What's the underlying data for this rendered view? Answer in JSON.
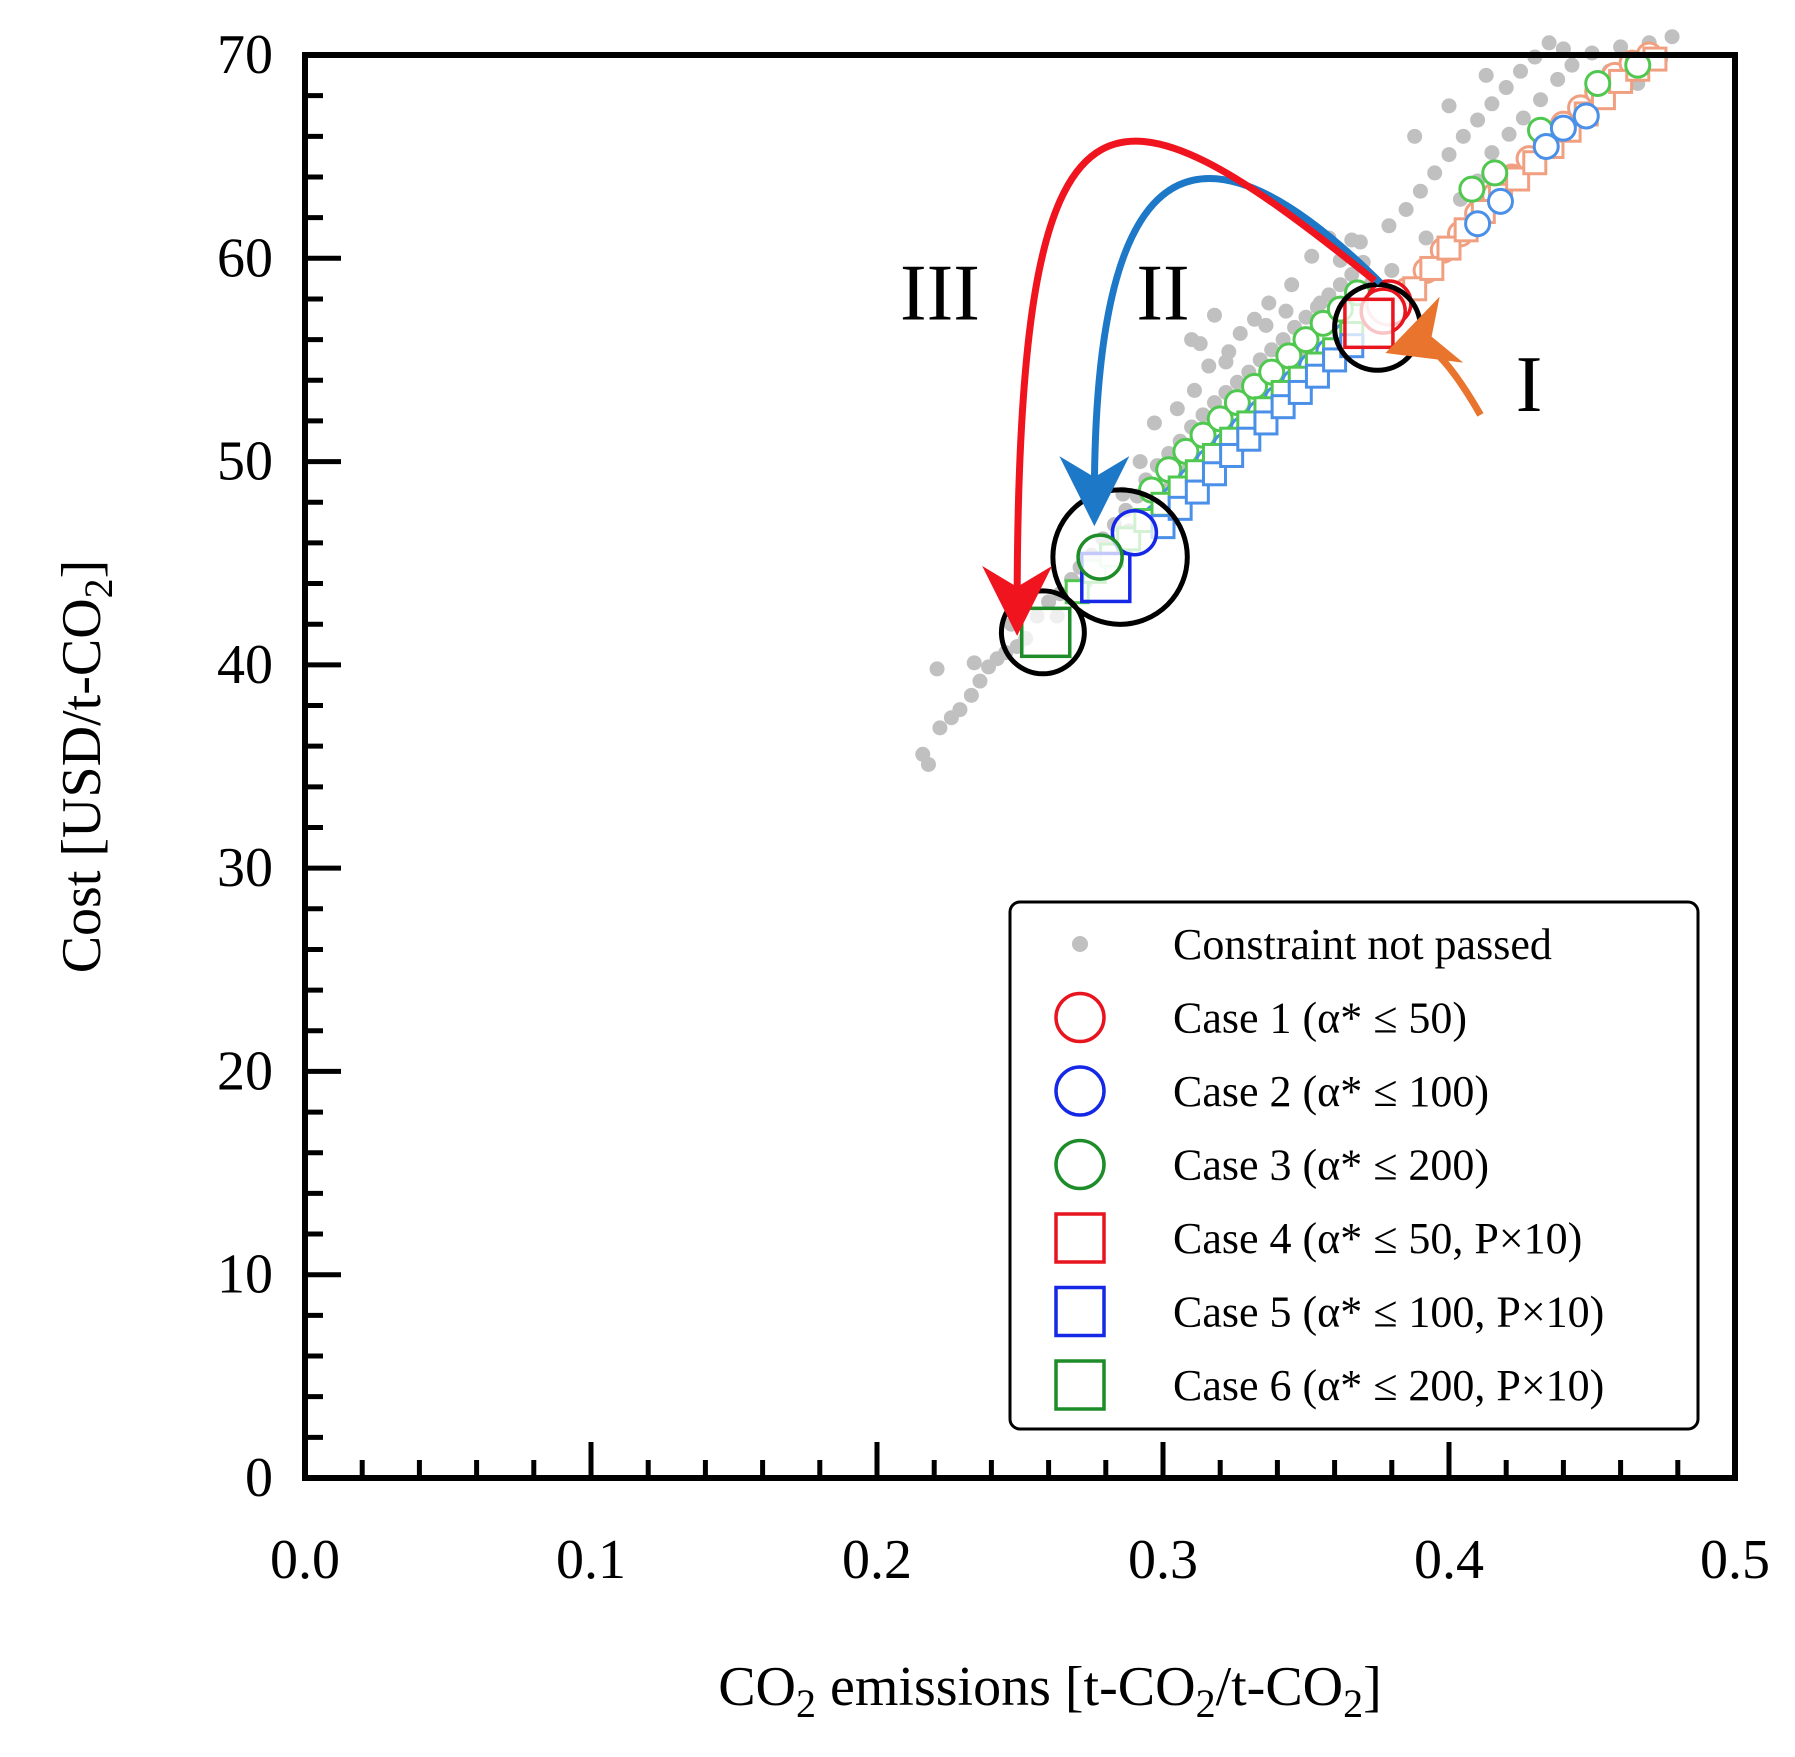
{
  "chart_data": {
    "type": "scatter",
    "title": "",
    "xlabel": {
      "prefix": "CO",
      "sub": "2",
      "mid": " emissions [t-CO",
      "sub2": "2",
      "mid2": "/t-CO",
      "sub3": "2",
      "suffix": "]"
    },
    "ylabel": {
      "prefix": "Cost [USD/t-CO",
      "sub": "2",
      "suffix": "]"
    },
    "xlim": [
      0.0,
      0.5
    ],
    "ylim": [
      0,
      70
    ],
    "x_major_ticks": [
      0.0,
      0.1,
      0.2,
      0.3,
      0.4,
      0.5
    ],
    "x_tick_labels": [
      "0.0",
      "0.1",
      "0.2",
      "0.3",
      "0.4",
      "0.5"
    ],
    "x_minor_step": 0.02,
    "y_major_ticks": [
      0,
      10,
      20,
      30,
      40,
      50,
      60,
      70
    ],
    "y_tick_labels": [
      "0",
      "10",
      "20",
      "30",
      "40",
      "50",
      "60",
      "70"
    ],
    "y_minor_step": 2,
    "grid": false,
    "legend_position": "bottom-right",
    "legend": [
      {
        "label": "Constraint not passed",
        "marker": "dot",
        "color": "#c0c0c0"
      },
      {
        "label": "Case 1 (α* ≤ 50)",
        "marker": "circle",
        "color": "#e8141e"
      },
      {
        "label": "Case 2 (α* ≤ 100)",
        "marker": "circle",
        "color": "#1428e6"
      },
      {
        "label": "Case 3 (α* ≤ 200)",
        "marker": "circle",
        "color": "#1e8c28"
      },
      {
        "label": "Case 4 (α* ≤ 50, P×10)",
        "marker": "square",
        "color": "#e8141e"
      },
      {
        "label": "Case 5 (α* ≤ 100, P×10)",
        "marker": "square",
        "color": "#1428e6"
      },
      {
        "label": "Case 6 (α* ≤ 200, P×10)",
        "marker": "square",
        "color": "#1e8c28"
      }
    ],
    "series": [
      {
        "name": "Constraint not passed",
        "marker": "dot",
        "color": "#c0c0c0",
        "points": [
          [
            0.216,
            35.6
          ],
          [
            0.218,
            35.1
          ],
          [
            0.222,
            36.9
          ],
          [
            0.226,
            37.4
          ],
          [
            0.229,
            37.8
          ],
          [
            0.233,
            38.5
          ],
          [
            0.236,
            39.2
          ],
          [
            0.239,
            39.9
          ],
          [
            0.242,
            40.3
          ],
          [
            0.245,
            40.6
          ],
          [
            0.249,
            40.9
          ],
          [
            0.252,
            41.3
          ],
          [
            0.221,
            39.8
          ],
          [
            0.234,
            40.1
          ],
          [
            0.247,
            42.0
          ],
          [
            0.256,
            42.4
          ],
          [
            0.26,
            43.1
          ],
          [
            0.264,
            43.5
          ],
          [
            0.268,
            44.2
          ],
          [
            0.271,
            44.8
          ],
          [
            0.275,
            45.4
          ],
          [
            0.279,
            46.2
          ],
          [
            0.283,
            46.9
          ],
          [
            0.287,
            47.6
          ],
          [
            0.291,
            48.3
          ],
          [
            0.294,
            49.1
          ],
          [
            0.298,
            49.8
          ],
          [
            0.302,
            50.4
          ],
          [
            0.306,
            51.0
          ],
          [
            0.31,
            51.7
          ],
          [
            0.314,
            52.3
          ],
          [
            0.318,
            52.9
          ],
          [
            0.322,
            53.4
          ],
          [
            0.326,
            53.9
          ],
          [
            0.33,
            54.4
          ],
          [
            0.334,
            55.0
          ],
          [
            0.338,
            55.5
          ],
          [
            0.342,
            56.0
          ],
          [
            0.346,
            56.6
          ],
          [
            0.35,
            57.1
          ],
          [
            0.354,
            57.6
          ],
          [
            0.358,
            58.2
          ],
          [
            0.362,
            58.7
          ],
          [
            0.366,
            59.2
          ],
          [
            0.37,
            59.8
          ],
          [
            0.286,
            48.4
          ],
          [
            0.292,
            50.0
          ],
          [
            0.297,
            51.9
          ],
          [
            0.305,
            52.6
          ],
          [
            0.311,
            53.5
          ],
          [
            0.316,
            54.7
          ],
          [
            0.323,
            55.4
          ],
          [
            0.327,
            56.3
          ],
          [
            0.332,
            57.0
          ],
          [
            0.337,
            57.8
          ],
          [
            0.313,
            55.8
          ],
          [
            0.322,
            54.9
          ],
          [
            0.345,
            58.7
          ],
          [
            0.352,
            60.1
          ],
          [
            0.358,
            61.0
          ],
          [
            0.369,
            60.8
          ],
          [
            0.379,
            61.6
          ],
          [
            0.385,
            62.4
          ],
          [
            0.39,
            63.3
          ],
          [
            0.395,
            64.2
          ],
          [
            0.4,
            65.1
          ],
          [
            0.405,
            66.0
          ],
          [
            0.41,
            66.8
          ],
          [
            0.415,
            67.6
          ],
          [
            0.42,
            68.4
          ],
          [
            0.425,
            69.2
          ],
          [
            0.43,
            69.9
          ],
          [
            0.435,
            70.6
          ],
          [
            0.44,
            70.3
          ],
          [
            0.388,
            66.0
          ],
          [
            0.4,
            67.5
          ],
          [
            0.413,
            69.0
          ],
          [
            0.392,
            61.0
          ],
          [
            0.398,
            60.4
          ],
          [
            0.404,
            62.9
          ],
          [
            0.41,
            63.8
          ],
          [
            0.415,
            65.2
          ],
          [
            0.421,
            66.1
          ],
          [
            0.426,
            66.9
          ],
          [
            0.432,
            67.8
          ],
          [
            0.438,
            68.8
          ],
          [
            0.443,
            69.5
          ],
          [
            0.45,
            70.1
          ],
          [
            0.456,
            69.2
          ],
          [
            0.46,
            70.4
          ],
          [
            0.466,
            68.6
          ],
          [
            0.47,
            70.6
          ],
          [
            0.474,
            69.8
          ],
          [
            0.478,
            70.9
          ],
          [
            0.362,
            59.9
          ],
          [
            0.366,
            60.9
          ],
          [
            0.373,
            58.8
          ],
          [
            0.376,
            58.1
          ],
          [
            0.35,
            55.2
          ],
          [
            0.345,
            54.1
          ],
          [
            0.34,
            53.2
          ],
          [
            0.336,
            52.8
          ],
          [
            0.329,
            52.1
          ],
          [
            0.324,
            51.5
          ],
          [
            0.319,
            50.8
          ],
          [
            0.313,
            50.1
          ],
          [
            0.308,
            49.5
          ],
          [
            0.303,
            48.9
          ],
          [
            0.298,
            48.1
          ],
          [
            0.293,
            47.3
          ],
          [
            0.288,
            46.6
          ],
          [
            0.283,
            45.8
          ],
          [
            0.278,
            45.0
          ],
          [
            0.273,
            44.1
          ],
          [
            0.268,
            43.3
          ],
          [
            0.263,
            42.4
          ],
          [
            0.31,
            56.0
          ],
          [
            0.318,
            57.2
          ],
          [
            0.336,
            56.7
          ],
          [
            0.343,
            57.4
          ],
          [
            0.355,
            57.8
          ],
          [
            0.38,
            59.4
          ]
        ]
      },
      {
        "name": "Case 1 (α* ≤ 50)",
        "marker": "circle",
        "color": "#e8141e",
        "points": [
          [
            0.379,
            57.8
          ],
          [
            0.377,
            57.4
          ]
        ]
      },
      {
        "name": "Case 2 (α* ≤ 100)",
        "marker": "circle",
        "color": "#1428e6",
        "points": [
          [
            0.29,
            46.5
          ]
        ]
      },
      {
        "name": "Case 3 (α* ≤ 200)",
        "marker": "circle",
        "color": "#1e8c28",
        "points": [
          [
            0.278,
            45.3
          ]
        ]
      },
      {
        "name": "Case 4 (α* ≤ 50, P×10)",
        "marker": "square",
        "color": "#e8141e",
        "points": [
          [
            0.372,
            56.8
          ]
        ]
      },
      {
        "name": "Case 5 (α* ≤ 100, P×10)",
        "marker": "square",
        "color": "#1428e6",
        "points": [
          [
            0.28,
            44.3
          ]
        ]
      },
      {
        "name": "Case 6 (α* ≤ 200, P×10)",
        "marker": "square",
        "color": "#1e8c28",
        "points": [
          [
            0.259,
            41.6
          ]
        ]
      },
      {
        "name": "Case 1 trail",
        "marker": "circle-small",
        "color": "#f0a080",
        "points": [
          [
            0.385,
            58.4
          ],
          [
            0.392,
            59.4
          ],
          [
            0.398,
            60.4
          ],
          [
            0.404,
            61.2
          ],
          [
            0.41,
            62.2
          ],
          [
            0.416,
            63.1
          ],
          [
            0.422,
            64.0
          ],
          [
            0.428,
            64.9
          ],
          [
            0.434,
            65.8
          ],
          [
            0.44,
            66.6
          ],
          [
            0.446,
            67.4
          ],
          [
            0.452,
            68.2
          ],
          [
            0.458,
            69.0
          ],
          [
            0.464,
            69.6
          ],
          [
            0.47,
            70.0
          ]
        ]
      },
      {
        "name": "Case 4 trail",
        "marker": "square-small",
        "color": "#f0a080",
        "points": [
          [
            0.388,
            58.5
          ],
          [
            0.394,
            59.5
          ],
          [
            0.4,
            60.5
          ],
          [
            0.406,
            61.4
          ],
          [
            0.412,
            62.3
          ],
          [
            0.418,
            63.1
          ],
          [
            0.424,
            63.9
          ],
          [
            0.43,
            64.7
          ],
          [
            0.436,
            65.5
          ],
          [
            0.442,
            66.3
          ],
          [
            0.448,
            67.1
          ],
          [
            0.454,
            67.9
          ],
          [
            0.46,
            68.7
          ],
          [
            0.466,
            69.3
          ],
          [
            0.472,
            69.8
          ]
        ]
      },
      {
        "name": "Case 2 trail",
        "marker": "circle-small",
        "color": "#4a90e8",
        "points": [
          [
            0.298,
            47.3
          ],
          [
            0.304,
            48.2
          ],
          [
            0.31,
            49.1
          ],
          [
            0.316,
            50.0
          ],
          [
            0.322,
            50.8
          ],
          [
            0.328,
            51.6
          ],
          [
            0.334,
            52.4
          ],
          [
            0.34,
            53.1
          ],
          [
            0.346,
            53.9
          ],
          [
            0.352,
            54.7
          ],
          [
            0.358,
            55.4
          ],
          [
            0.364,
            56.2
          ],
          [
            0.41,
            61.7
          ],
          [
            0.418,
            62.8
          ],
          [
            0.434,
            65.5
          ],
          [
            0.44,
            66.4
          ],
          [
            0.448,
            67.0
          ]
        ]
      },
      {
        "name": "Case 5 trail",
        "marker": "square-small",
        "color": "#4a90e8",
        "points": [
          [
            0.3,
            46.8
          ],
          [
            0.306,
            47.7
          ],
          [
            0.312,
            48.5
          ],
          [
            0.318,
            49.4
          ],
          [
            0.324,
            50.3
          ],
          [
            0.33,
            51.1
          ],
          [
            0.336,
            51.9
          ],
          [
            0.342,
            52.7
          ],
          [
            0.348,
            53.4
          ],
          [
            0.354,
            54.2
          ],
          [
            0.36,
            55.0
          ],
          [
            0.366,
            55.7
          ]
        ]
      },
      {
        "name": "Case 3 trail",
        "marker": "circle-small",
        "color": "#50c850",
        "points": [
          [
            0.296,
            48.6
          ],
          [
            0.302,
            49.6
          ],
          [
            0.308,
            50.5
          ],
          [
            0.314,
            51.3
          ],
          [
            0.32,
            52.1
          ],
          [
            0.326,
            52.9
          ],
          [
            0.332,
            53.7
          ],
          [
            0.338,
            54.4
          ],
          [
            0.344,
            55.2
          ],
          [
            0.35,
            56.0
          ],
          [
            0.356,
            56.8
          ],
          [
            0.362,
            57.5
          ],
          [
            0.368,
            58.3
          ],
          [
            0.408,
            63.4
          ],
          [
            0.416,
            64.2
          ],
          [
            0.432,
            66.3
          ],
          [
            0.452,
            68.6
          ],
          [
            0.466,
            69.5
          ]
        ]
      },
      {
        "name": "Case 6 trail",
        "marker": "square-small",
        "color": "#50c850",
        "points": [
          [
            0.27,
            43.6
          ],
          [
            0.276,
            44.6
          ],
          [
            0.282,
            45.4
          ],
          [
            0.288,
            46.2
          ],
          [
            0.294,
            47.1
          ],
          [
            0.3,
            47.9
          ],
          [
            0.306,
            48.7
          ],
          [
            0.312,
            49.5
          ],
          [
            0.318,
            50.3
          ],
          [
            0.324,
            51.1
          ],
          [
            0.33,
            51.9
          ],
          [
            0.336,
            52.6
          ],
          [
            0.342,
            53.4
          ],
          [
            0.348,
            54.1
          ],
          [
            0.354,
            54.8
          ],
          [
            0.36,
            55.5
          ],
          [
            0.366,
            56.3
          ]
        ]
      }
    ],
    "highlight_circles": [
      {
        "name": "case-1-4-highlight",
        "x": 0.375,
        "y": 56.6,
        "r_data": 0.015
      },
      {
        "name": "case-2-3-5-highlight",
        "x": 0.285,
        "y": 45.3,
        "r_data": 0.0235
      },
      {
        "name": "case-6-highlight",
        "x": 0.258,
        "y": 41.6,
        "r_data": 0.0145
      }
    ],
    "annotations": [
      {
        "name": "annotation-I",
        "text": "I",
        "x": 0.428,
        "y": 52.5,
        "color": "#e8742e",
        "arrow": {
          "from": [
            0.411,
            52.3
          ],
          "to": [
            0.387,
            55.8
          ],
          "via": [
            0.395,
            56.2
          ]
        }
      },
      {
        "name": "annotation-II",
        "text": "II",
        "x": 0.3,
        "y": 57.0,
        "color": "#1e78c8",
        "arrow": {
          "from": [
            0.376,
            58.8
          ],
          "to": [
            0.276,
            48.2
          ],
          "via": [
            0.3,
            64.5
          ]
        }
      },
      {
        "name": "annotation-III",
        "text": "III",
        "x": 0.222,
        "y": 57.0,
        "color": "#f0141e",
        "arrow": {
          "from": [
            0.374,
            58.9
          ],
          "to": [
            0.249,
            42.8
          ],
          "via": [
            0.26,
            67.5
          ]
        }
      }
    ]
  }
}
